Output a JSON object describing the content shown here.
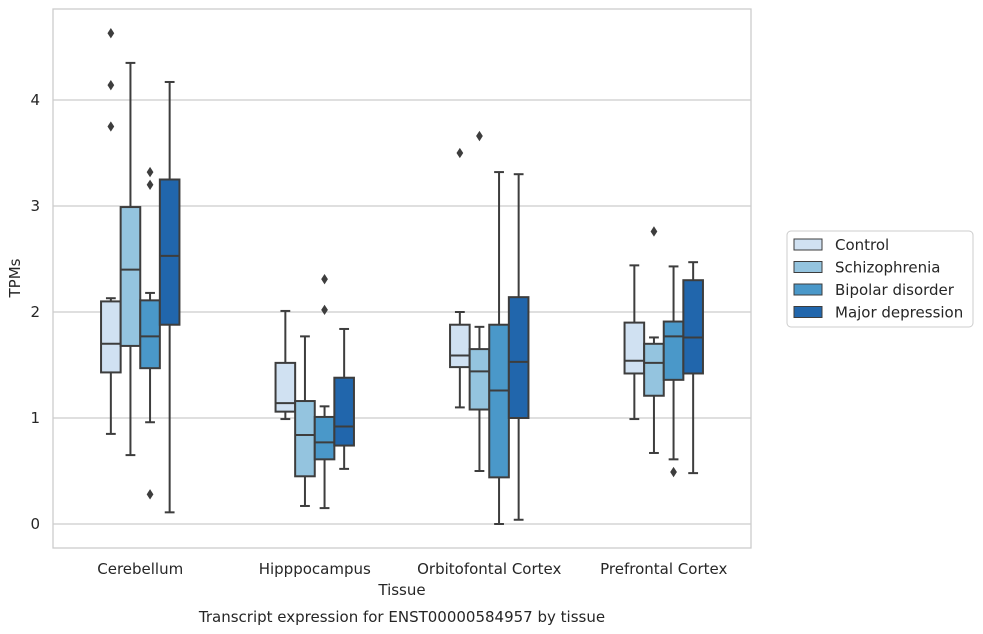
{
  "chart_data": {
    "type": "box",
    "caption": "Transcript expression for ENST00000584957 by tissue",
    "xlabel": "Tissue",
    "ylabel": "TPMs",
    "ylim": [
      -0.22,
      4.85
    ],
    "yticks": [
      0,
      1,
      2,
      3,
      4
    ],
    "grid": "horizontal",
    "legend_position": "right",
    "categories": [
      "Cerebellum",
      "Hipppocampus",
      "Orbitofontal Cortex",
      "Prefrontal Cortex"
    ],
    "series": [
      {
        "name": "Control",
        "color": "#d0e1f2",
        "boxes": [
          {
            "whislo": 0.85,
            "q1": 1.43,
            "med": 1.7,
            "q3": 2.1,
            "whishi": 2.13,
            "fliers": [
              3.75,
              4.14,
              4.63
            ]
          },
          {
            "whislo": 0.99,
            "q1": 1.06,
            "med": 1.14,
            "q3": 1.52,
            "whishi": 2.01,
            "fliers": []
          },
          {
            "whislo": 1.1,
            "q1": 1.48,
            "med": 1.59,
            "q3": 1.88,
            "whishi": 2.0,
            "fliers": [
              3.5
            ]
          },
          {
            "whislo": 0.99,
            "q1": 1.42,
            "med": 1.54,
            "q3": 1.9,
            "whishi": 2.44,
            "fliers": []
          }
        ]
      },
      {
        "name": "Schizophrenia",
        "color": "#94c4df",
        "boxes": [
          {
            "whislo": 0.65,
            "q1": 1.68,
            "med": 2.4,
            "q3": 2.99,
            "whishi": 4.35,
            "fliers": []
          },
          {
            "whislo": 0.17,
            "q1": 0.45,
            "med": 0.84,
            "q3": 1.16,
            "whishi": 1.77,
            "fliers": []
          },
          {
            "whislo": 0.5,
            "q1": 1.08,
            "med": 1.44,
            "q3": 1.65,
            "whishi": 1.86,
            "fliers": [
              3.66
            ]
          },
          {
            "whislo": 0.67,
            "q1": 1.21,
            "med": 1.52,
            "q3": 1.7,
            "whishi": 1.76,
            "fliers": [
              2.76
            ]
          }
        ]
      },
      {
        "name": "Bipolar disorder",
        "color": "#4a98c9",
        "boxes": [
          {
            "whislo": 0.96,
            "q1": 1.47,
            "med": 1.77,
            "q3": 2.11,
            "whishi": 2.18,
            "fliers": [
              3.2,
              3.32,
              0.28
            ]
          },
          {
            "whislo": 0.15,
            "q1": 0.61,
            "med": 0.77,
            "q3": 1.01,
            "whishi": 1.11,
            "fliers": [
              2.02,
              2.31
            ]
          },
          {
            "whislo": 0.0,
            "q1": 0.44,
            "med": 1.26,
            "q3": 1.88,
            "whishi": 3.32,
            "fliers": []
          },
          {
            "whislo": 0.61,
            "q1": 1.36,
            "med": 1.77,
            "q3": 1.91,
            "whishi": 2.43,
            "fliers": [
              0.49
            ]
          }
        ]
      },
      {
        "name": "Major depression",
        "color": "#2166ac",
        "boxes": [
          {
            "whislo": 0.11,
            "q1": 1.88,
            "med": 2.53,
            "q3": 3.25,
            "whishi": 4.17,
            "fliers": []
          },
          {
            "whislo": 0.52,
            "q1": 0.74,
            "med": 0.92,
            "q3": 1.38,
            "whishi": 1.84,
            "fliers": []
          },
          {
            "whislo": 0.04,
            "q1": 1.0,
            "med": 1.53,
            "q3": 2.14,
            "whishi": 3.3,
            "fliers": []
          },
          {
            "whislo": 0.48,
            "q1": 1.42,
            "med": 1.76,
            "q3": 2.3,
            "whishi": 2.47,
            "fliers": []
          }
        ]
      }
    ]
  }
}
